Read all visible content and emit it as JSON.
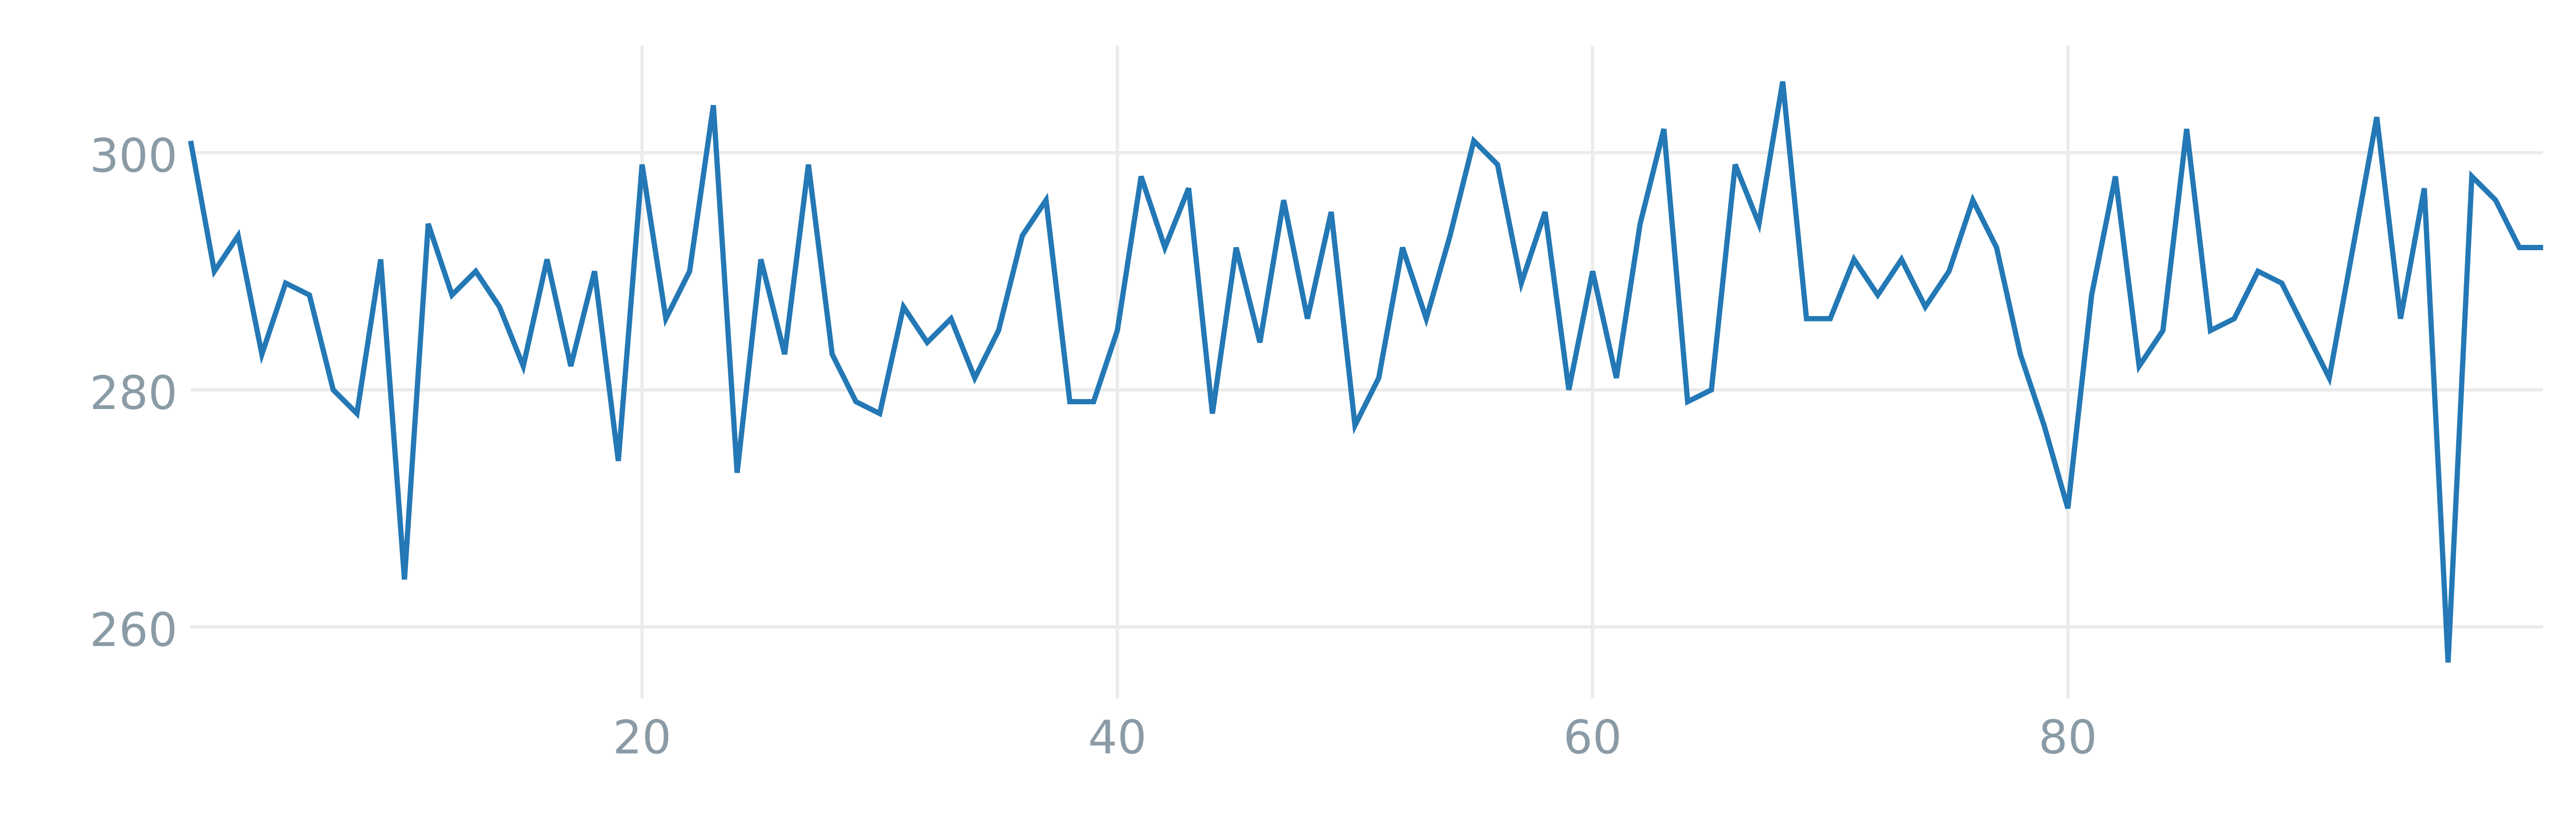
{
  "chart_data": {
    "type": "line",
    "x": [
      1,
      2,
      3,
      4,
      5,
      6,
      7,
      8,
      9,
      10,
      11,
      12,
      13,
      14,
      15,
      16,
      17,
      18,
      19,
      20,
      21,
      22,
      23,
      24,
      25,
      26,
      27,
      28,
      29,
      30,
      31,
      32,
      33,
      34,
      35,
      36,
      37,
      38,
      39,
      40,
      41,
      42,
      43,
      44,
      45,
      46,
      47,
      48,
      49,
      50,
      51,
      52,
      53,
      54,
      55,
      56,
      57,
      58,
      59,
      60,
      61,
      62,
      63,
      64,
      65,
      66,
      67,
      68,
      69,
      70,
      71,
      72,
      73,
      74,
      75,
      76,
      77,
      78,
      79,
      80,
      81,
      82,
      83,
      84,
      85,
      86,
      87,
      88,
      89,
      90,
      91,
      92,
      93,
      94,
      95,
      96,
      97,
      98,
      99,
      100
    ],
    "series": [
      {
        "color": "#2378b5",
        "values": [
          301,
          290,
          293,
          283,
          289,
          288,
          280,
          278,
          291,
          264,
          294,
          288,
          290,
          287,
          282,
          291,
          282,
          290,
          274,
          299,
          286,
          290,
          304,
          273,
          291,
          283,
          299,
          283,
          279,
          278,
          287,
          284,
          286,
          281,
          285,
          293,
          296,
          279,
          279,
          285,
          298,
          292,
          297,
          278,
          292,
          284,
          296,
          286,
          295,
          277,
          281,
          292,
          286,
          293,
          301,
          299,
          289,
          295,
          280,
          290,
          281,
          294,
          302,
          279,
          280,
          299,
          294,
          306,
          286,
          286,
          291,
          288,
          291,
          287,
          290,
          296,
          292,
          283,
          277,
          270,
          288,
          298,
          282,
          285,
          302,
          285,
          286,
          290,
          289,
          285,
          281,
          292,
          303,
          286,
          297,
          257,
          298,
          296,
          292,
          292
        ]
      }
    ],
    "xlim": [
      1,
      100
    ],
    "ylim": [
      254,
      309
    ],
    "xticks": [
      20,
      40,
      60,
      80
    ],
    "yticks": [
      260,
      280,
      300
    ],
    "grid": true
  }
}
